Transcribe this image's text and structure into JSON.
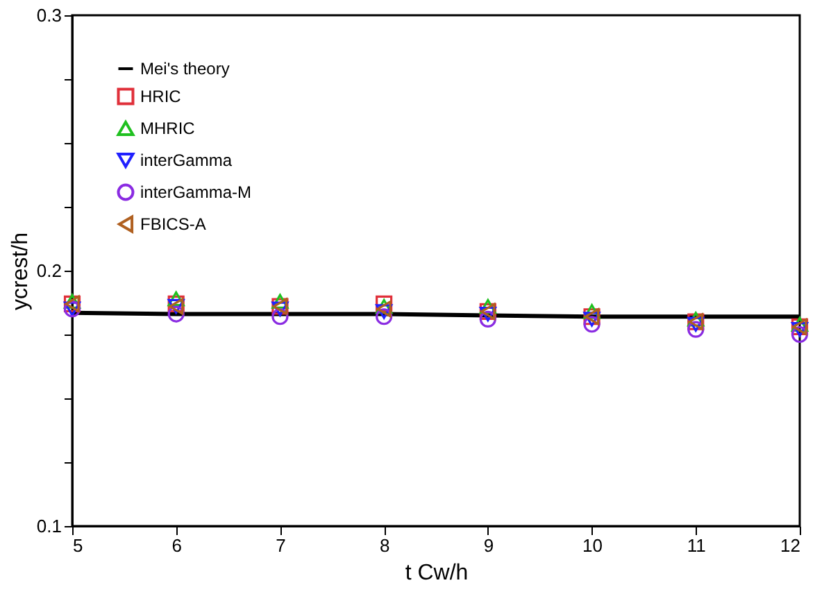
{
  "chart_data": {
    "type": "scatter",
    "xlabel": "t Cw/h",
    "ylabel": "ycrest/h",
    "x": [
      5,
      6,
      7,
      8,
      9,
      10,
      11,
      12
    ],
    "series": [
      {
        "name": "Mei's theory",
        "type": "line",
        "color": "#000000",
        "marker": "none",
        "line_style": "solid",
        "values": [
          0.1835,
          0.183,
          0.183,
          0.183,
          0.1825,
          0.182,
          0.182,
          0.182
        ]
      },
      {
        "name": "HRIC",
        "color": "#e0303a",
        "marker": "square",
        "values": [
          0.187,
          0.187,
          0.186,
          0.187,
          0.184,
          0.182,
          0.18,
          0.178
        ]
      },
      {
        "name": "MHRIC",
        "color": "#20c020",
        "marker": "triangle",
        "values": [
          0.188,
          0.189,
          0.188,
          0.186,
          0.186,
          0.184,
          0.181,
          0.179
        ]
      },
      {
        "name": "interGamma",
        "color": "#2020ff",
        "marker": "triangle-down",
        "values": [
          0.185,
          0.186,
          0.185,
          0.184,
          0.183,
          0.181,
          0.179,
          0.177
        ]
      },
      {
        "name": "interGamma-M",
        "color": "#8a2be2",
        "marker": "circle",
        "values": [
          0.185,
          0.183,
          0.182,
          0.182,
          0.181,
          0.179,
          0.177,
          0.175
        ]
      },
      {
        "name": "FBICS-A",
        "color": "#b06020",
        "marker": "triangle-left",
        "values": [
          0.187,
          0.186,
          0.186,
          0.185,
          0.184,
          0.182,
          0.18,
          0.178
        ]
      }
    ],
    "xlim": [
      5,
      12
    ],
    "xticks": [
      5,
      6,
      7,
      8,
      9,
      10,
      11,
      12
    ],
    "ylim": [
      0.1,
      0.3
    ],
    "yticks": [
      0.1,
      {
        "value": 0.125,
        "label": null
      },
      {
        "value": 0.15,
        "label": null
      },
      {
        "value": 0.175,
        "label": null
      },
      0.2,
      {
        "value": 0.225,
        "label": null
      },
      {
        "value": 0.25,
        "label": null
      },
      {
        "value": 0.275,
        "label": null
      },
      0.3
    ],
    "grid": false,
    "legend": "top left"
  }
}
